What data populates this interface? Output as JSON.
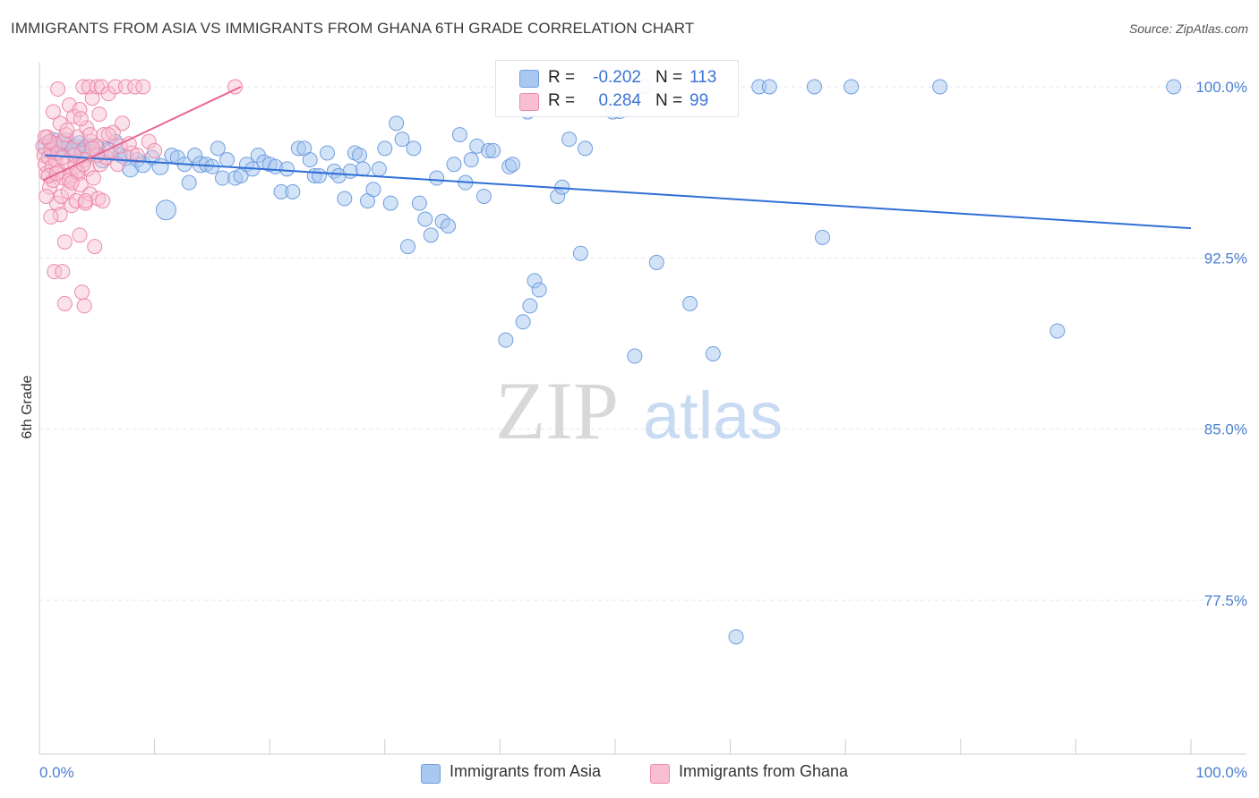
{
  "title": "IMMIGRANTS FROM ASIA VS IMMIGRANTS FROM GHANA 6TH GRADE CORRELATION CHART",
  "source": "Source: ZipAtlas.com",
  "watermark": {
    "zip": "ZIP",
    "atlas": "atlas"
  },
  "colors": {
    "asia_fill": "#a8c8f0",
    "asia_stroke": "#6f9ee0",
    "asia_line": "#2f6fd6",
    "ghana_fill": "#f7bfd0",
    "ghana_stroke": "#ee89a9",
    "ghana_line": "#e8678f",
    "grid": "#e3e6ec",
    "tick_text": "#4a7fd0"
  },
  "legend": {
    "rows": [
      {
        "r_label": "R =",
        "r_value": "-0.202",
        "n_label": "N =",
        "n_value": "113"
      },
      {
        "r_label": "R =",
        "r_value": "0.284",
        "n_label": "N =",
        "n_value": "99"
      }
    ]
  },
  "bottom_legend": [
    "Immigrants from Asia",
    "Immigrants from Ghana"
  ],
  "chart_data": {
    "type": "scatter",
    "title": "IMMIGRANTS FROM ASIA VS IMMIGRANTS FROM GHANA 6TH GRADE CORRELATION CHART",
    "xlabel": "",
    "ylabel": "6th Grade",
    "xlim": [
      0,
      100
    ],
    "ylim": [
      70.0,
      100.6
    ],
    "x_tick_labels": [
      "0.0%",
      "100.0%"
    ],
    "y_ticks": [
      77.5,
      85.0,
      92.5,
      100.0
    ],
    "y_tick_labels": [
      "77.5%",
      "85.0%",
      "92.5%",
      "100.0%"
    ],
    "grid": true,
    "legend_position": "top-center",
    "series": [
      {
        "name": "Immigrants from Asia",
        "r": -0.202,
        "n": 113,
        "trend": {
          "x": [
            0.5,
            100
          ],
          "y": [
            97.0,
            93.8
          ]
        },
        "points": [
          [
            0.8,
            97.4,
            12
          ],
          [
            1.2,
            97.6,
            10
          ],
          [
            1.5,
            97.2,
            11
          ],
          [
            1.8,
            97.5,
            9
          ],
          [
            2.0,
            97.3,
            9
          ],
          [
            2.3,
            97.6,
            10
          ],
          [
            2.6,
            97.4,
            9
          ],
          [
            2.9,
            97.1,
            9
          ],
          [
            3.2,
            97.3,
            10
          ],
          [
            3.5,
            97.5,
            9
          ],
          [
            3.8,
            97.2,
            9
          ],
          [
            4.1,
            97.4,
            9
          ],
          [
            4.5,
            97.1,
            9
          ],
          [
            5.0,
            97.4,
            8
          ],
          [
            5.5,
            96.8,
            9
          ],
          [
            6.0,
            97.2,
            9
          ],
          [
            6.6,
            97.6,
            8
          ],
          [
            7.0,
            97.0,
            8
          ],
          [
            7.5,
            96.9,
            9
          ],
          [
            7.9,
            96.4,
            9
          ],
          [
            8.5,
            96.8,
            8
          ],
          [
            9.0,
            96.6,
            9
          ],
          [
            9.8,
            96.9,
            8
          ],
          [
            10.5,
            96.5,
            9
          ],
          [
            11.0,
            94.6,
            11
          ],
          [
            11.5,
            97.0,
            8
          ],
          [
            12.0,
            96.9,
            8
          ],
          [
            12.6,
            96.6,
            8
          ],
          [
            13.0,
            95.8,
            8
          ],
          [
            13.5,
            97.0,
            8
          ],
          [
            14.0,
            96.6,
            9
          ],
          [
            14.5,
            96.6,
            8
          ],
          [
            15.0,
            96.5,
            8
          ],
          [
            15.5,
            97.3,
            8
          ],
          [
            15.9,
            96.0,
            8
          ],
          [
            16.3,
            96.8,
            8
          ],
          [
            17.0,
            96.0,
            8
          ],
          [
            17.5,
            96.1,
            8
          ],
          [
            18.0,
            96.6,
            8
          ],
          [
            18.5,
            96.4,
            8
          ],
          [
            19.0,
            97.0,
            8
          ],
          [
            19.5,
            96.7,
            8
          ],
          [
            20.0,
            96.6,
            8
          ],
          [
            20.5,
            96.5,
            8
          ],
          [
            21.0,
            95.4,
            8
          ],
          [
            21.5,
            96.4,
            8
          ],
          [
            22.0,
            95.4,
            8
          ],
          [
            22.5,
            97.3,
            8
          ],
          [
            23.0,
            97.3,
            8
          ],
          [
            23.5,
            96.8,
            8
          ],
          [
            23.9,
            96.1,
            8
          ],
          [
            24.3,
            96.1,
            8
          ],
          [
            25.0,
            97.1,
            8
          ],
          [
            25.6,
            96.3,
            8
          ],
          [
            26.0,
            96.1,
            8
          ],
          [
            26.5,
            95.1,
            8
          ],
          [
            27.0,
            96.3,
            8
          ],
          [
            27.4,
            97.1,
            8
          ],
          [
            27.8,
            97.0,
            8
          ],
          [
            28.1,
            96.4,
            8
          ],
          [
            28.5,
            95.0,
            8
          ],
          [
            29.0,
            95.5,
            8
          ],
          [
            29.5,
            96.4,
            8
          ],
          [
            30.0,
            97.3,
            8
          ],
          [
            30.5,
            94.9,
            8
          ],
          [
            31.0,
            98.4,
            8
          ],
          [
            31.5,
            97.7,
            8
          ],
          [
            32.0,
            93.0,
            8
          ],
          [
            32.5,
            97.3,
            8
          ],
          [
            33.0,
            94.9,
            8
          ],
          [
            33.5,
            94.2,
            8
          ],
          [
            34.0,
            93.5,
            8
          ],
          [
            34.5,
            96.0,
            8
          ],
          [
            35.0,
            94.1,
            8
          ],
          [
            35.5,
            93.9,
            8
          ],
          [
            36.0,
            96.6,
            8
          ],
          [
            36.5,
            97.9,
            8
          ],
          [
            37.0,
            95.8,
            8
          ],
          [
            37.5,
            96.8,
            8
          ],
          [
            38.0,
            97.4,
            8
          ],
          [
            38.6,
            95.2,
            8
          ],
          [
            39.0,
            97.2,
            8
          ],
          [
            39.4,
            97.2,
            8
          ],
          [
            40.5,
            88.9,
            8
          ],
          [
            40.8,
            96.5,
            8
          ],
          [
            41.1,
            96.6,
            8
          ],
          [
            42.0,
            89.7,
            8
          ],
          [
            42.4,
            98.9,
            8
          ],
          [
            42.6,
            90.4,
            8
          ],
          [
            43.0,
            91.5,
            8
          ],
          [
            43.4,
            91.1,
            8
          ],
          [
            45.0,
            95.2,
            8
          ],
          [
            45.4,
            95.6,
            8
          ],
          [
            46.0,
            97.7,
            8
          ],
          [
            47.0,
            92.7,
            8
          ],
          [
            47.4,
            97.3,
            8
          ],
          [
            50.4,
            99.0,
            10
          ],
          [
            51.7,
            88.2,
            8
          ],
          [
            52.5,
            100.0,
            8
          ],
          [
            53.6,
            92.3,
            8
          ],
          [
            56.5,
            90.5,
            8
          ],
          [
            57.5,
            100.0,
            8
          ],
          [
            58.5,
            88.3,
            8
          ],
          [
            62.5,
            100.0,
            8
          ],
          [
            63.4,
            100.0,
            8
          ],
          [
            67.3,
            100.0,
            8
          ],
          [
            68.0,
            93.4,
            8
          ],
          [
            70.5,
            100.0,
            8
          ],
          [
            78.2,
            100.0,
            8
          ],
          [
            88.4,
            89.3,
            8
          ],
          [
            98.5,
            100.0,
            8
          ],
          [
            60.5,
            75.9,
            8
          ],
          [
            49.8,
            98.9,
            8
          ]
        ]
      },
      {
        "name": "Immigrants from Ghana",
        "r": 0.284,
        "n": 99,
        "trend": {
          "x": [
            0.3,
            17.5
          ],
          "y": [
            95.9,
            100.0
          ]
        },
        "points": [
          [
            0.3,
            97.4
          ],
          [
            0.4,
            97.0
          ],
          [
            0.5,
            96.6
          ],
          [
            0.6,
            96.2
          ],
          [
            0.7,
            97.8
          ],
          [
            0.8,
            96.9
          ],
          [
            0.9,
            95.6
          ],
          [
            1.0,
            97.2
          ],
          [
            1.1,
            96.5
          ],
          [
            1.2,
            95.9
          ],
          [
            1.3,
            97.5
          ],
          [
            1.4,
            96.8
          ],
          [
            1.5,
            94.9
          ],
          [
            1.6,
            97.1
          ],
          [
            1.7,
            96.3
          ],
          [
            1.8,
            98.4
          ],
          [
            1.9,
            95.2
          ],
          [
            2.0,
            97.6
          ],
          [
            2.1,
            96.0
          ],
          [
            2.2,
            93.2
          ],
          [
            2.3,
            97.9
          ],
          [
            2.4,
            96.7
          ],
          [
            2.5,
            95.4
          ],
          [
            2.6,
            99.2
          ],
          [
            2.7,
            96.1
          ],
          [
            2.8,
            94.8
          ],
          [
            2.9,
            97.3
          ],
          [
            3.0,
            98.7
          ],
          [
            3.1,
            96.5
          ],
          [
            3.2,
            95.0
          ],
          [
            3.3,
            97.8
          ],
          [
            3.4,
            96.2
          ],
          [
            3.5,
            99.0
          ],
          [
            3.6,
            95.7
          ],
          [
            3.7,
            97.1
          ],
          [
            3.8,
            100.0
          ],
          [
            3.9,
            96.8
          ],
          [
            4.0,
            94.9
          ],
          [
            4.1,
            98.2
          ],
          [
            4.2,
            96.4
          ],
          [
            4.3,
            100.0
          ],
          [
            4.4,
            95.3
          ],
          [
            4.5,
            97.6
          ],
          [
            4.6,
            99.5
          ],
          [
            4.7,
            96.0
          ],
          [
            4.8,
            93.0
          ],
          [
            4.9,
            97.4
          ],
          [
            5.0,
            100.0
          ],
          [
            5.1,
            95.1
          ],
          [
            5.2,
            98.8
          ],
          [
            5.3,
            96.6
          ],
          [
            5.4,
            100.0
          ],
          [
            5.5,
            95.0
          ],
          [
            5.6,
            97.9
          ],
          [
            5.8,
            96.9
          ],
          [
            6.0,
            99.7
          ],
          [
            6.2,
            97.2
          ],
          [
            6.4,
            98.0
          ],
          [
            6.6,
            100.0
          ],
          [
            6.8,
            96.6
          ],
          [
            7.0,
            97.4
          ],
          [
            7.2,
            98.4
          ],
          [
            7.5,
            100.0
          ],
          [
            8.0,
            97.1
          ],
          [
            8.3,
            100.0
          ],
          [
            9.0,
            100.0
          ],
          [
            9.5,
            97.6
          ],
          [
            10.0,
            97.2
          ],
          [
            1.3,
            91.9
          ],
          [
            2.0,
            91.9
          ],
          [
            3.7,
            91.0
          ],
          [
            2.2,
            90.5
          ],
          [
            3.9,
            90.4
          ],
          [
            3.5,
            93.5
          ],
          [
            1.8,
            94.4
          ],
          [
            2.6,
            95.9
          ],
          [
            3.3,
            96.3
          ],
          [
            4.0,
            95.0
          ],
          [
            4.4,
            97.9
          ],
          [
            5.0,
            97.0
          ],
          [
            1.2,
            98.9
          ],
          [
            2.4,
            98.1
          ],
          [
            3.0,
            97.0
          ],
          [
            3.8,
            96.6
          ],
          [
            0.8,
            96.1
          ],
          [
            1.0,
            94.3
          ],
          [
            1.5,
            96.2
          ],
          [
            2.8,
            95.8
          ],
          [
            0.6,
            95.2
          ],
          [
            0.9,
            97.6
          ],
          [
            6.0,
            97.9
          ],
          [
            3.6,
            98.6
          ],
          [
            4.6,
            97.3
          ],
          [
            2.0,
            96.9
          ],
          [
            1.6,
            99.9
          ],
          [
            0.5,
            97.8
          ],
          [
            17.0,
            100.0
          ],
          [
            8.5,
            97.0
          ],
          [
            7.8,
            97.5
          ]
        ]
      }
    ]
  }
}
